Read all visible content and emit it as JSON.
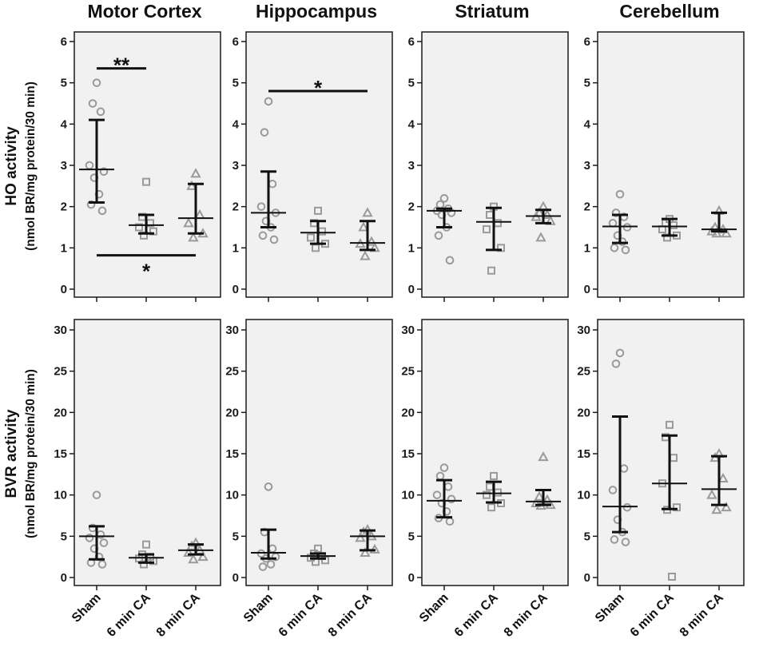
{
  "colors": {
    "panel_fill": "#f1f1f1",
    "axis": "#1a1a1a",
    "marker_stroke": "#9a9a9a",
    "bar": "#111111"
  },
  "categories": [
    "Sham",
    "6 min CA",
    "8 min CA"
  ],
  "chart_data": [
    {
      "type": "scatter",
      "title": "Motor Cortex",
      "ylabel": "HO activity",
      "ylabel_sub": "(nmol BR/mg protein/30 min)",
      "ylim": [
        0,
        6
      ],
      "yticks": [
        0,
        1,
        2,
        3,
        4,
        5,
        6
      ],
      "series": [
        {
          "category": "Sham",
          "marker": "circle",
          "points": [
            5.0,
            4.5,
            4.3,
            3.0,
            2.85,
            2.7,
            2.3,
            2.05,
            1.9
          ],
          "median": 2.9,
          "upper": 4.1,
          "lower": 2.1
        },
        {
          "category": "6 min CA",
          "marker": "square",
          "points": [
            2.6,
            1.75,
            1.6,
            1.5,
            1.4,
            1.3
          ],
          "median": 1.55,
          "upper": 1.8,
          "lower": 1.35
        },
        {
          "category": "8 min CA",
          "marker": "triangle",
          "points": [
            2.8,
            2.5,
            1.8,
            1.6,
            1.35,
            1.25
          ],
          "median": 1.72,
          "upper": 2.55,
          "lower": 1.35
        }
      ],
      "significance": [
        {
          "from": "Sham",
          "to": "6 min CA",
          "at": 5.35,
          "label": "**",
          "label_pos": "above"
        },
        {
          "from": "Sham",
          "to": "8 min CA",
          "at": 0.82,
          "label": "*",
          "label_pos": "below"
        }
      ]
    },
    {
      "type": "scatter",
      "title": "Hippocampus",
      "ylim": [
        0,
        6
      ],
      "yticks": [
        0,
        1,
        2,
        3,
        4,
        5,
        6
      ],
      "series": [
        {
          "category": "Sham",
          "marker": "circle",
          "points": [
            4.55,
            3.8,
            2.55,
            2.0,
            1.85,
            1.65,
            1.5,
            1.3,
            1.2
          ],
          "median": 1.85,
          "upper": 2.85,
          "lower": 1.5
        },
        {
          "category": "6 min CA",
          "marker": "square",
          "points": [
            1.9,
            1.6,
            1.4,
            1.25,
            1.1,
            1.0
          ],
          "median": 1.37,
          "upper": 1.65,
          "lower": 1.1
        },
        {
          "category": "8 min CA",
          "marker": "triangle",
          "points": [
            1.85,
            1.5,
            1.15,
            1.1,
            1.0,
            0.8
          ],
          "median": 1.12,
          "upper": 1.65,
          "lower": 0.95
        }
      ],
      "significance": [
        {
          "from": "Sham",
          "to": "8 min CA",
          "at": 4.8,
          "label": "*",
          "label_pos": "above"
        }
      ]
    },
    {
      "type": "scatter",
      "title": "Striatum",
      "ylim": [
        0,
        6
      ],
      "yticks": [
        0,
        1,
        2,
        3,
        4,
        5,
        6
      ],
      "series": [
        {
          "category": "Sham",
          "marker": "circle",
          "points": [
            2.2,
            2.05,
            1.95,
            1.9,
            1.85,
            1.8,
            1.5,
            1.3,
            0.7
          ],
          "median": 1.9,
          "upper": 1.95,
          "lower": 1.5
        },
        {
          "category": "6 min CA",
          "marker": "square",
          "points": [
            2.0,
            1.8,
            1.6,
            1.45,
            1.0,
            0.45
          ],
          "median": 1.63,
          "upper": 1.97,
          "lower": 0.95
        },
        {
          "category": "8 min CA",
          "marker": "triangle",
          "points": [
            2.0,
            1.85,
            1.8,
            1.75,
            1.65,
            1.25
          ],
          "median": 1.77,
          "upper": 1.92,
          "lower": 1.6
        }
      ],
      "significance": []
    },
    {
      "type": "scatter",
      "title": "Cerebellum",
      "ylim": [
        0,
        6
      ],
      "yticks": [
        0,
        1,
        2,
        3,
        4,
        5,
        6
      ],
      "series": [
        {
          "category": "Sham",
          "marker": "circle",
          "points": [
            2.3,
            1.85,
            1.75,
            1.6,
            1.5,
            1.3,
            1.15,
            1.0,
            0.95
          ],
          "median": 1.52,
          "upper": 1.8,
          "lower": 1.12
        },
        {
          "category": "6 min CA",
          "marker": "square",
          "points": [
            1.7,
            1.6,
            1.55,
            1.45,
            1.3,
            1.25
          ],
          "median": 1.52,
          "upper": 1.7,
          "lower": 1.3
        },
        {
          "category": "8 min CA",
          "marker": "triangle",
          "points": [
            1.9,
            1.5,
            1.45,
            1.4,
            1.35,
            1.35
          ],
          "median": 1.45,
          "upper": 1.85,
          "lower": 1.4
        }
      ],
      "significance": []
    },
    {
      "type": "scatter",
      "title": "",
      "ylabel": "BVR activity",
      "ylabel_sub": "(nmol BR/mg protein/30 min)",
      "ylim": [
        0,
        30
      ],
      "yticks": [
        0,
        5,
        10,
        15,
        20,
        25,
        30
      ],
      "series": [
        {
          "category": "Sham",
          "marker": "circle",
          "points": [
            10.0,
            6.0,
            5.2,
            4.8,
            4.2,
            3.5,
            2.5,
            1.8,
            1.6
          ],
          "median": 5.0,
          "upper": 6.2,
          "lower": 2.2
        },
        {
          "category": "6 min CA",
          "marker": "square",
          "points": [
            4.0,
            2.8,
            2.5,
            2.3,
            2.0,
            1.6
          ],
          "median": 2.4,
          "upper": 2.8,
          "lower": 1.8
        },
        {
          "category": "8 min CA",
          "marker": "triangle",
          "points": [
            4.2,
            3.8,
            3.3,
            3.0,
            2.5,
            2.2
          ],
          "median": 3.3,
          "upper": 4.0,
          "lower": 2.8
        }
      ],
      "significance": []
    },
    {
      "type": "scatter",
      "title": "",
      "ylim": [
        0,
        30
      ],
      "yticks": [
        0,
        5,
        10,
        15,
        20,
        25,
        30
      ],
      "series": [
        {
          "category": "Sham",
          "marker": "circle",
          "points": [
            11.0,
            5.5,
            3.5,
            2.9,
            2.5,
            2.3,
            1.6,
            1.3
          ],
          "median": 3.0,
          "upper": 5.8,
          "lower": 2.3
        },
        {
          "category": "6 min CA",
          "marker": "square",
          "points": [
            3.5,
            2.9,
            2.6,
            2.4,
            2.1,
            1.9
          ],
          "median": 2.6,
          "upper": 2.9,
          "lower": 2.3
        },
        {
          "category": "8 min CA",
          "marker": "triangle",
          "points": [
            5.8,
            5.5,
            5.0,
            4.8,
            3.4,
            3.0
          ],
          "median": 5.0,
          "upper": 5.7,
          "lower": 3.3
        }
      ],
      "significance": []
    },
    {
      "type": "scatter",
      "title": "",
      "ylim": [
        0,
        30
      ],
      "yticks": [
        0,
        5,
        10,
        15,
        20,
        25,
        30
      ],
      "series": [
        {
          "category": "Sham",
          "marker": "circle",
          "points": [
            13.3,
            12.3,
            11.0,
            10.0,
            9.5,
            9.0,
            8.0,
            7.2,
            6.8
          ],
          "median": 9.3,
          "upper": 11.8,
          "lower": 7.3
        },
        {
          "category": "6 min CA",
          "marker": "square",
          "points": [
            12.3,
            11.0,
            10.3,
            10.0,
            9.0,
            8.5
          ],
          "median": 10.2,
          "upper": 11.6,
          "lower": 9.1
        },
        {
          "category": "8 min CA",
          "marker": "triangle",
          "points": [
            14.6,
            9.8,
            9.4,
            9.0,
            8.8,
            8.7
          ],
          "median": 9.2,
          "upper": 10.6,
          "lower": 8.8
        }
      ],
      "significance": []
    },
    {
      "type": "scatter",
      "title": "",
      "ylim": [
        0,
        30
      ],
      "yticks": [
        0,
        5,
        10,
        15,
        20,
        25,
        30
      ],
      "series": [
        {
          "category": "Sham",
          "marker": "circle",
          "points": [
            27.2,
            25.9,
            13.2,
            10.6,
            8.5,
            7.0,
            5.5,
            4.6,
            4.3
          ],
          "median": 8.6,
          "upper": 19.5,
          "lower": 5.5
        },
        {
          "category": "6 min CA",
          "marker": "square",
          "points": [
            18.5,
            17.0,
            14.5,
            11.4,
            8.5,
            8.2,
            0.1
          ],
          "median": 11.4,
          "upper": 17.2,
          "lower": 8.3
        },
        {
          "category": "8 min CA",
          "marker": "triangle",
          "points": [
            15.0,
            14.5,
            12.0,
            10.0,
            8.5,
            8.2
          ],
          "median": 10.7,
          "upper": 14.7,
          "lower": 8.8
        }
      ],
      "significance": []
    }
  ]
}
